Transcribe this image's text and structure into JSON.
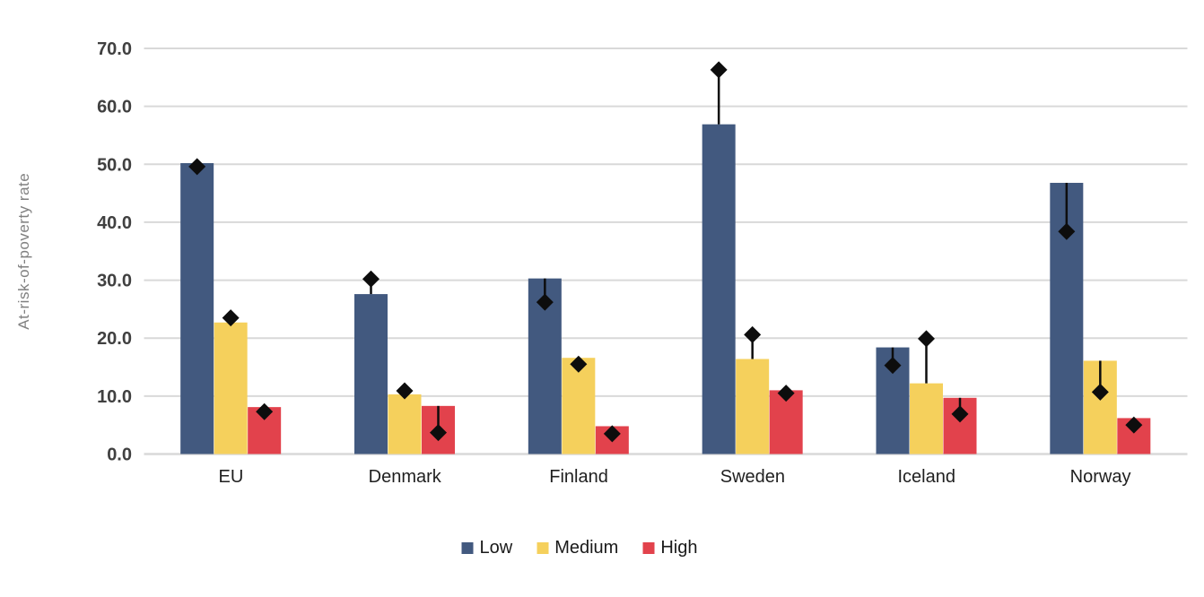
{
  "chart_data": {
    "type": "bar",
    "title": "",
    "ylabel": "At-risk-of-poverty rate",
    "xlabel": "",
    "categories": [
      "EU",
      "Denmark",
      "Finland",
      "Sweden",
      "Iceland",
      "Norway"
    ],
    "series": [
      {
        "name": "Low",
        "color": "#42597F",
        "values": [
          50.2,
          27.6,
          30.3,
          56.9,
          18.4,
          46.8
        ],
        "markers": [
          49.6,
          30.2,
          26.2,
          66.3,
          15.3,
          38.4
        ]
      },
      {
        "name": "Medium",
        "color": "#F5D05C",
        "values": [
          22.7,
          10.3,
          16.6,
          16.4,
          12.2,
          16.1
        ],
        "markers": [
          23.5,
          10.9,
          15.5,
          20.6,
          19.9,
          10.7
        ]
      },
      {
        "name": "High",
        "color": "#E2424C",
        "values": [
          8.1,
          8.3,
          4.8,
          11.0,
          9.7,
          6.2
        ],
        "markers": [
          7.3,
          3.7,
          3.5,
          10.5,
          6.9,
          5.0
        ]
      }
    ],
    "marker_style": "black diamond with vertical whisker from bar top",
    "marker_color": "#0d0d0d",
    "y_axis": {
      "min": 0,
      "max": 70,
      "step": 10
    },
    "y_ticks": [
      "0.0",
      "10.0",
      "20.0",
      "30.0",
      "40.0",
      "50.0",
      "60.0",
      "70.0"
    ],
    "grid": true,
    "gridline_color": "#d9d9d9",
    "legend": {
      "position": "bottom",
      "items": [
        "Low",
        "Medium",
        "High"
      ]
    }
  }
}
